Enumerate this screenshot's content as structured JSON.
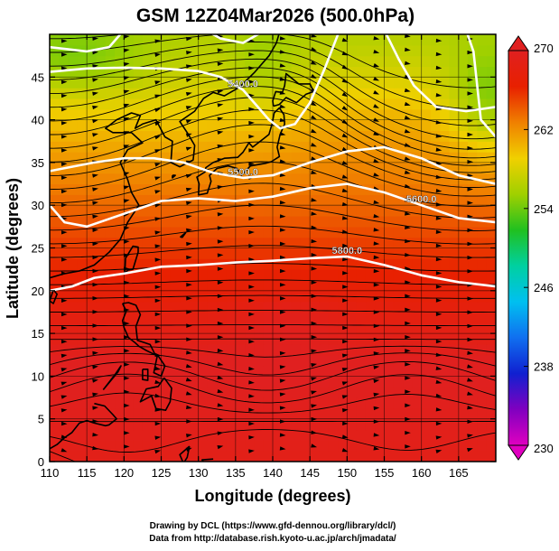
{
  "chart_data": {
    "type": "heatmap",
    "title": "GSM 12Z04Mar2026 (500.0hPa)",
    "xlabel": "Longitude (degrees)",
    "ylabel": "Latitude  (degrees)",
    "xlim": [
      110,
      170
    ],
    "ylim": [
      0,
      50
    ],
    "x_ticks": [
      110,
      115,
      120,
      125,
      130,
      135,
      140,
      145,
      150,
      155,
      160,
      165
    ],
    "y_ticks": [
      0,
      5,
      10,
      15,
      20,
      25,
      30,
      35,
      40,
      45
    ],
    "grid": true,
    "colorbar": {
      "range": [
        230,
        270
      ],
      "ticks": [
        230,
        238,
        246,
        254,
        262,
        270
      ],
      "colors": [
        "#e000c0",
        "#8000c0",
        "#1020d0",
        "#1070f0",
        "#00c0f0",
        "#00d0a0",
        "#20c020",
        "#a0d000",
        "#f0d000",
        "#f08000",
        "#e82000",
        "#e02020"
      ]
    },
    "contours": [
      {
        "label": "5400.0",
        "points": [
          [
            110,
            45.6
          ],
          [
            115,
            46.0
          ],
          [
            120,
            46.1
          ],
          [
            125,
            46.0
          ],
          [
            130,
            45.7
          ],
          [
            133,
            45.0
          ],
          [
            136,
            43.5
          ],
          [
            138,
            41.5
          ],
          [
            139.5,
            40.0
          ],
          [
            141,
            39.0
          ],
          [
            143,
            39.5
          ],
          [
            145,
            42
          ],
          [
            147,
            46
          ],
          [
            149,
            50.5
          ]
        ]
      },
      {
        "label": "5400.0",
        "points": [
          [
            155,
            50.5
          ],
          [
            157,
            47
          ],
          [
            159,
            44
          ],
          [
            162,
            41.5
          ],
          [
            166,
            41.0
          ],
          [
            170,
            41.5
          ]
        ]
      },
      {
        "label": "5400.0",
        "points": [
          [
            110,
            48.5
          ],
          [
            115,
            48.0
          ],
          [
            118,
            48.5
          ],
          [
            120,
            50.5
          ]
        ]
      },
      {
        "label": "5400.0",
        "points": [
          [
            131,
            50.5
          ],
          [
            133,
            49.5
          ],
          [
            136,
            49.0
          ],
          [
            139,
            50.5
          ]
        ]
      },
      {
        "label": "5400.0",
        "points": [
          [
            166,
            50.5
          ],
          [
            167,
            48
          ],
          [
            167.5,
            44
          ],
          [
            168,
            40
          ],
          [
            170,
            38
          ]
        ]
      },
      {
        "label": "5500.0",
        "points": [
          [
            110,
            34.0
          ],
          [
            113,
            34.5
          ],
          [
            116,
            35.0
          ],
          [
            120,
            35.5
          ],
          [
            124,
            35.5
          ],
          [
            128,
            35.0
          ],
          [
            132,
            33.8
          ],
          [
            136,
            33.2
          ],
          [
            140,
            33.5
          ],
          [
            145,
            35.0
          ],
          [
            150,
            36.3
          ],
          [
            155,
            36.8
          ],
          [
            160,
            35.5
          ],
          [
            165,
            33.5
          ],
          [
            170,
            32.5
          ]
        ]
      },
      {
        "label": "5600.0",
        "points": [
          [
            110,
            30.0
          ],
          [
            112,
            28.0
          ],
          [
            115,
            27.5
          ],
          [
            120,
            29.0
          ],
          [
            125,
            30.5
          ],
          [
            130,
            30.8
          ],
          [
            135,
            30.5
          ],
          [
            140,
            31.0
          ],
          [
            145,
            32.0
          ],
          [
            150,
            32.5
          ],
          [
            155,
            31.5
          ],
          [
            160,
            30.0
          ],
          [
            165,
            28.5
          ],
          [
            170,
            28.0
          ]
        ]
      },
      {
        "label": "5800.0",
        "points": [
          [
            110,
            20.0
          ],
          [
            113,
            20.5
          ],
          [
            116,
            21.5
          ],
          [
            120,
            22.0
          ],
          [
            125,
            22.8
          ],
          [
            130,
            23.0
          ],
          [
            135,
            23.3
          ],
          [
            140,
            23.5
          ],
          [
            145,
            23.8
          ],
          [
            150,
            24.0
          ],
          [
            155,
            23.0
          ],
          [
            160,
            21.8
          ],
          [
            165,
            21.0
          ],
          [
            170,
            20.5
          ]
        ]
      }
    ]
  },
  "credit_line_1": "Drawing by DCL (https://www.gfd-dennou.org/library/dcl/)",
  "credit_line_2": "Data from http://database.rish.kyoto-u.ac.jp/arch/jmadata/"
}
